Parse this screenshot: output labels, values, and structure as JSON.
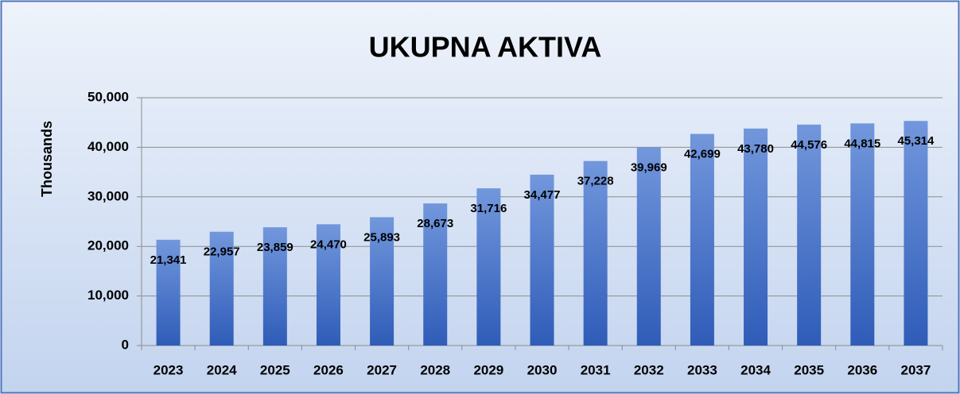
{
  "chart_data": {
    "type": "bar",
    "title": "UKUPNA AKTIVA",
    "y_label": "Thousands",
    "categories": [
      "2023",
      "2024",
      "2025",
      "2026",
      "2027",
      "2028",
      "2029",
      "2030",
      "2031",
      "2032",
      "2033",
      "2034",
      "2035",
      "2036",
      "2037"
    ],
    "values": [
      21341,
      22957,
      23859,
      24470,
      25893,
      28673,
      31716,
      34477,
      37228,
      39969,
      42699,
      43780,
      44576,
      44815,
      45314
    ],
    "value_labels": [
      "21,341",
      "22,957",
      "23,859",
      "24,470",
      "25,893",
      "28,673",
      "31,716",
      "34,477",
      "37,228",
      "39,969",
      "42,699",
      "43,780",
      "44,576",
      "44,815",
      "45,314"
    ],
    "color": "#2f5cb8",
    "ylim": [
      0,
      50000
    ],
    "yticks": [
      0,
      {
        "value": 10000,
        "label": "10,000"
      },
      {
        "value": 20000,
        "label": "20,000"
      },
      {
        "value": 30000,
        "label": "30,000"
      },
      {
        "value": 40000,
        "label": "40,000"
      },
      {
        "value": 50000,
        "label": "50,000"
      }
    ],
    "grid": true
  }
}
